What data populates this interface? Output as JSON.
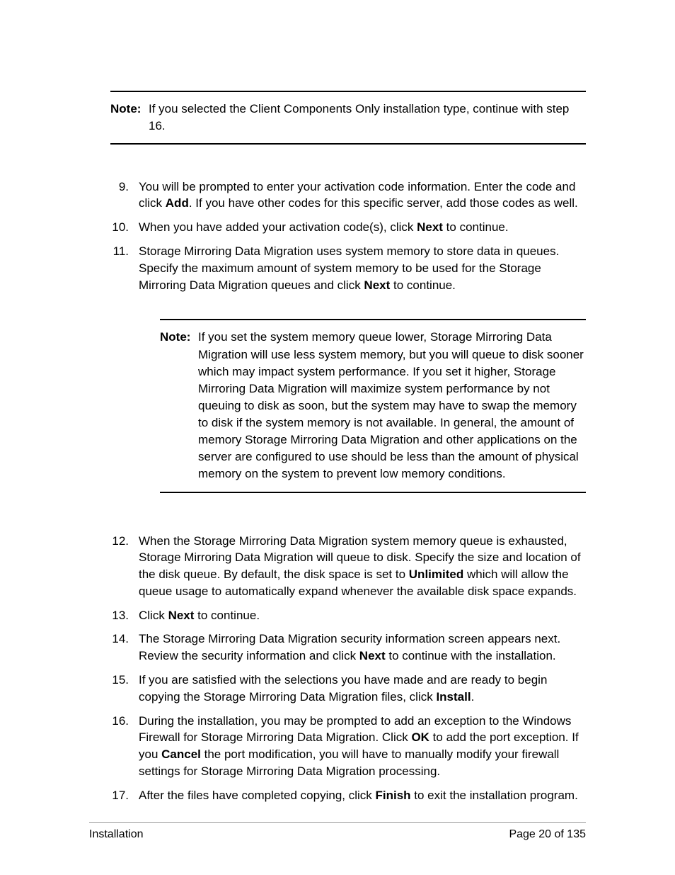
{
  "note1": {
    "label": "Note:",
    "text": "If you selected the Client Components Only installation type, continue with step 16."
  },
  "steps": {
    "s9": {
      "num": "9.",
      "t1": "You will be prompted to enter your activation code information. Enter the code and click ",
      "b1": "Add",
      "t2": ". If you have other codes for this specific server, add those codes as well."
    },
    "s10": {
      "num": "10.",
      "t1": "When you have added your activation code(s), click ",
      "b1": "Next",
      "t2": " to continue."
    },
    "s11": {
      "num": "11.",
      "t1": "Storage Mirroring Data Migration uses system memory to store data in queues. Specify the maximum amount of system memory to be used for the Storage Mirroring Data Migration queues and click ",
      "b1": "Next",
      "t2": " to continue."
    },
    "s12": {
      "num": "12.",
      "t1": "When the Storage Mirroring Data Migration system memory queue is exhausted, Storage Mirroring Data Migration will queue to disk. Specify the size and location of the disk queue. By default, the disk space is set to ",
      "b1": "Unlimited",
      "t2": " which will allow the queue usage to automatically expand whenever the available disk space expands."
    },
    "s13": {
      "num": "13.",
      "t1": "Click ",
      "b1": "Next",
      "t2": " to continue."
    },
    "s14": {
      "num": "14.",
      "t1": "The Storage Mirroring Data Migration security information screen appears next. Review the security information and click ",
      "b1": "Next",
      "t2": " to continue with the installation."
    },
    "s15": {
      "num": "15.",
      "t1": "If you are satisfied with the selections you have made and are ready to begin copying the Storage Mirroring Data Migration files, click ",
      "b1": "Install",
      "t2": "."
    },
    "s16": {
      "num": "16.",
      "t1": "During the installation, you may be prompted to add an exception to the Windows Firewall for Storage Mirroring Data Migration. Click ",
      "b1": "OK",
      "t2": " to add the port exception. If you ",
      "b2": "Cancel",
      "t3": " the port modification, you will have to manually modify your firewall settings for Storage Mirroring Data Migration processing."
    },
    "s17": {
      "num": "17.",
      "t1": "After the files have completed copying, click ",
      "b1": "Finish",
      "t2": " to exit the installation program."
    }
  },
  "note2": {
    "label": "Note:",
    "text": "If you set the system memory queue lower, Storage Mirroring Data Migration will use less system memory, but you will queue to disk sooner which may impact system performance. If you set it higher, Storage Mirroring Data Migration will maximize system performance by not queuing to disk as soon, but the system may have to swap the memory to disk if the system memory is not available. In general, the amount of memory Storage Mirroring Data Migration and other applications on the server are configured to use should be less than the amount of physical memory on the system to prevent low memory conditions."
  },
  "footer": {
    "left": "Installation",
    "right": "Page 20 of 135"
  }
}
